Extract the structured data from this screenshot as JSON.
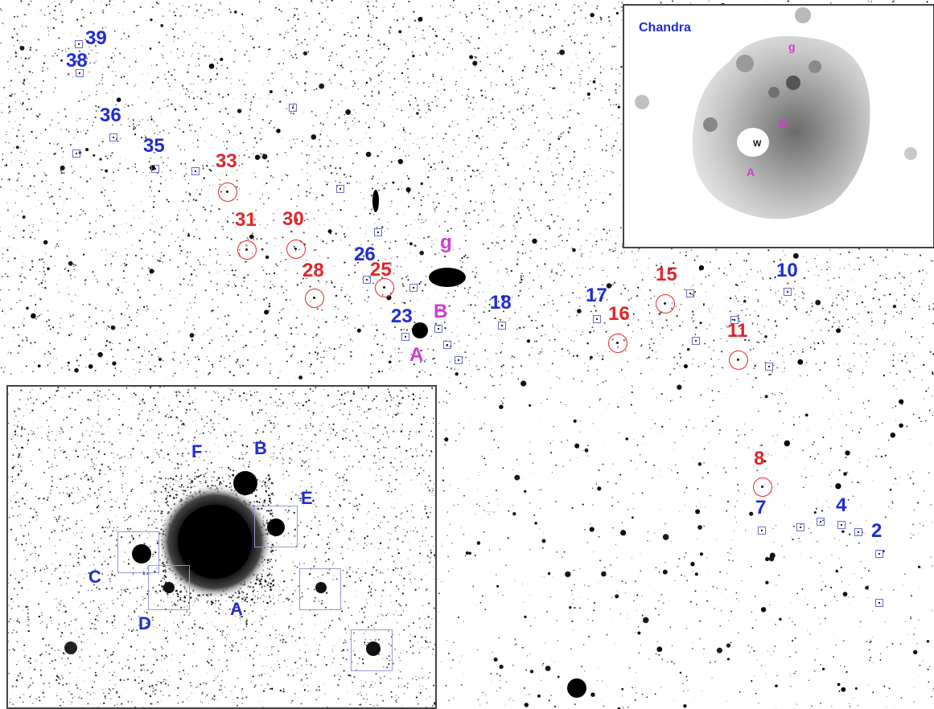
{
  "main_labels": {
    "blue": [
      "39",
      "38",
      "36",
      "35",
      "26",
      "23",
      "18",
      "17",
      "10",
      "7",
      "4",
      "2"
    ],
    "red": [
      "33",
      "31",
      "30",
      "28",
      "25",
      "16",
      "15",
      "11",
      "8"
    ],
    "magenta": [
      "g",
      "B",
      "A"
    ]
  },
  "chandra_inset": {
    "title": "Chandra",
    "labels": [
      "g",
      "B",
      "A"
    ],
    "center_mark": "W"
  },
  "zoom_inset": {
    "labels": [
      "F",
      "B",
      "E",
      "C",
      "A",
      "D"
    ]
  },
  "colors": {
    "blue_label": "#1f2bd6",
    "red_label": "#e0262a",
    "magenta_label": "#d23ad2",
    "square_marker": "#6a6ad8"
  }
}
